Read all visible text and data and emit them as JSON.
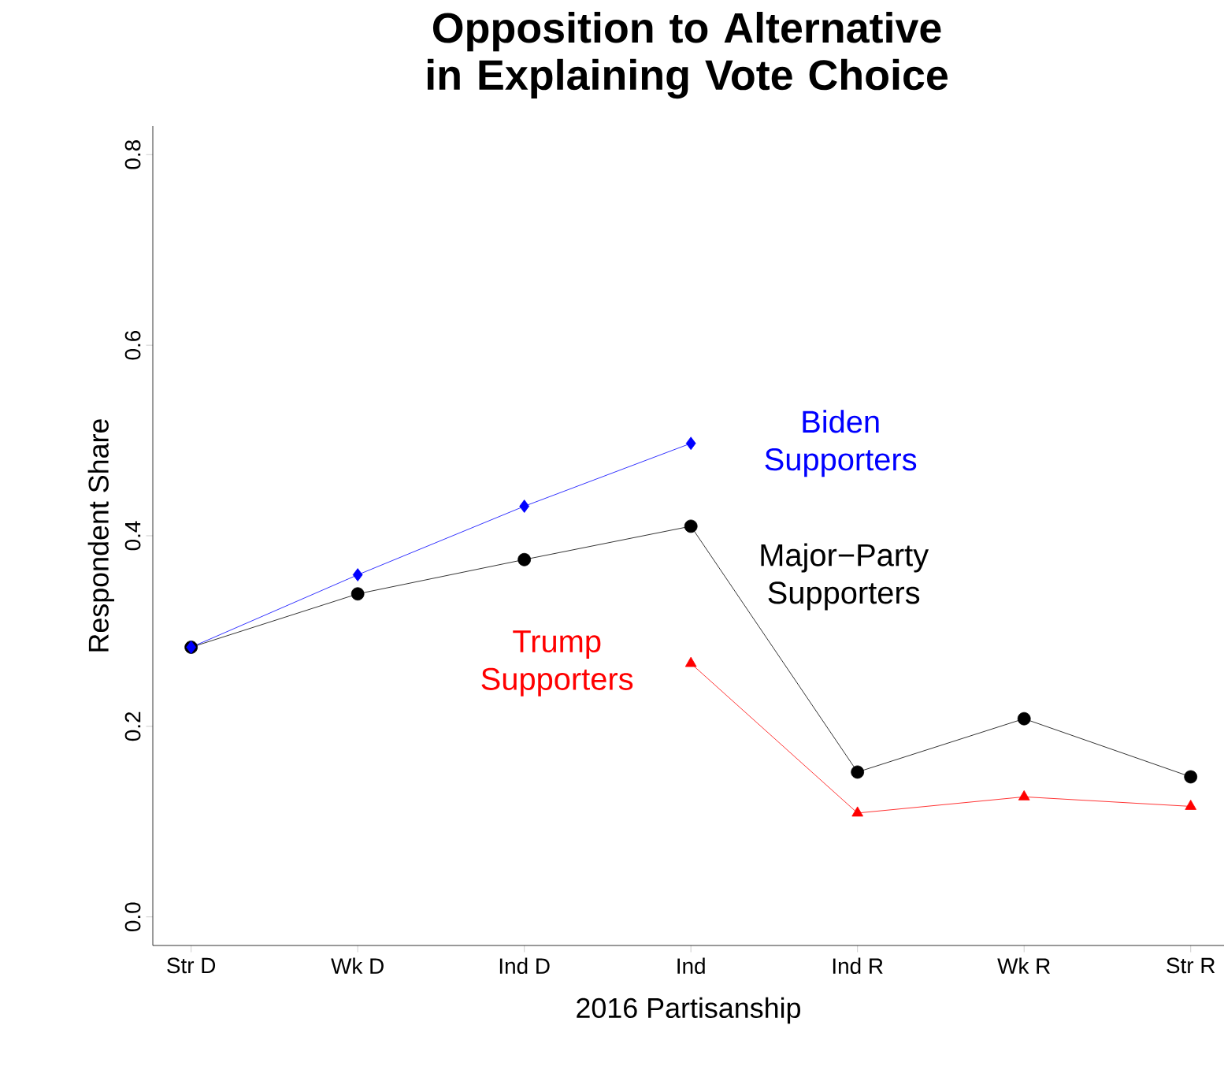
{
  "chart_data": {
    "type": "line",
    "title": "Opposition to Alternative in Explaining Vote Choice",
    "xlabel": "2016 Partisanship",
    "ylabel": "Respondent Share",
    "categories": [
      "Str D",
      "Wk D",
      "Ind D",
      "Ind",
      "Ind R",
      "Wk R",
      "Str R"
    ],
    "series": [
      {
        "name": "Biden Supporters",
        "color": "#0000ff",
        "marker": "diamond",
        "values": [
          0.283,
          0.359,
          0.431,
          0.497,
          null,
          null,
          null
        ]
      },
      {
        "name": "Major−Party Supporters",
        "color": "#000000",
        "marker": "circle",
        "values": [
          0.283,
          0.339,
          0.375,
          0.41,
          0.152,
          0.208,
          0.147
        ]
      },
      {
        "name": "Trump Supporters",
        "color": "#ff0000",
        "marker": "triangle",
        "values": [
          null,
          null,
          null,
          0.266,
          0.109,
          0.126,
          0.116
        ]
      }
    ],
    "ylim": [
      -0.03,
      0.83
    ],
    "yticks": [
      {
        "value": 0,
        "label": "0.0"
      },
      {
        "value": 0.2,
        "label": "0.2"
      },
      {
        "value": 0.4,
        "label": "0.4"
      },
      {
        "value": 0.6,
        "label": "0.6"
      },
      {
        "value": 0.8,
        "label": "0.8"
      }
    ],
    "grid": false
  }
}
